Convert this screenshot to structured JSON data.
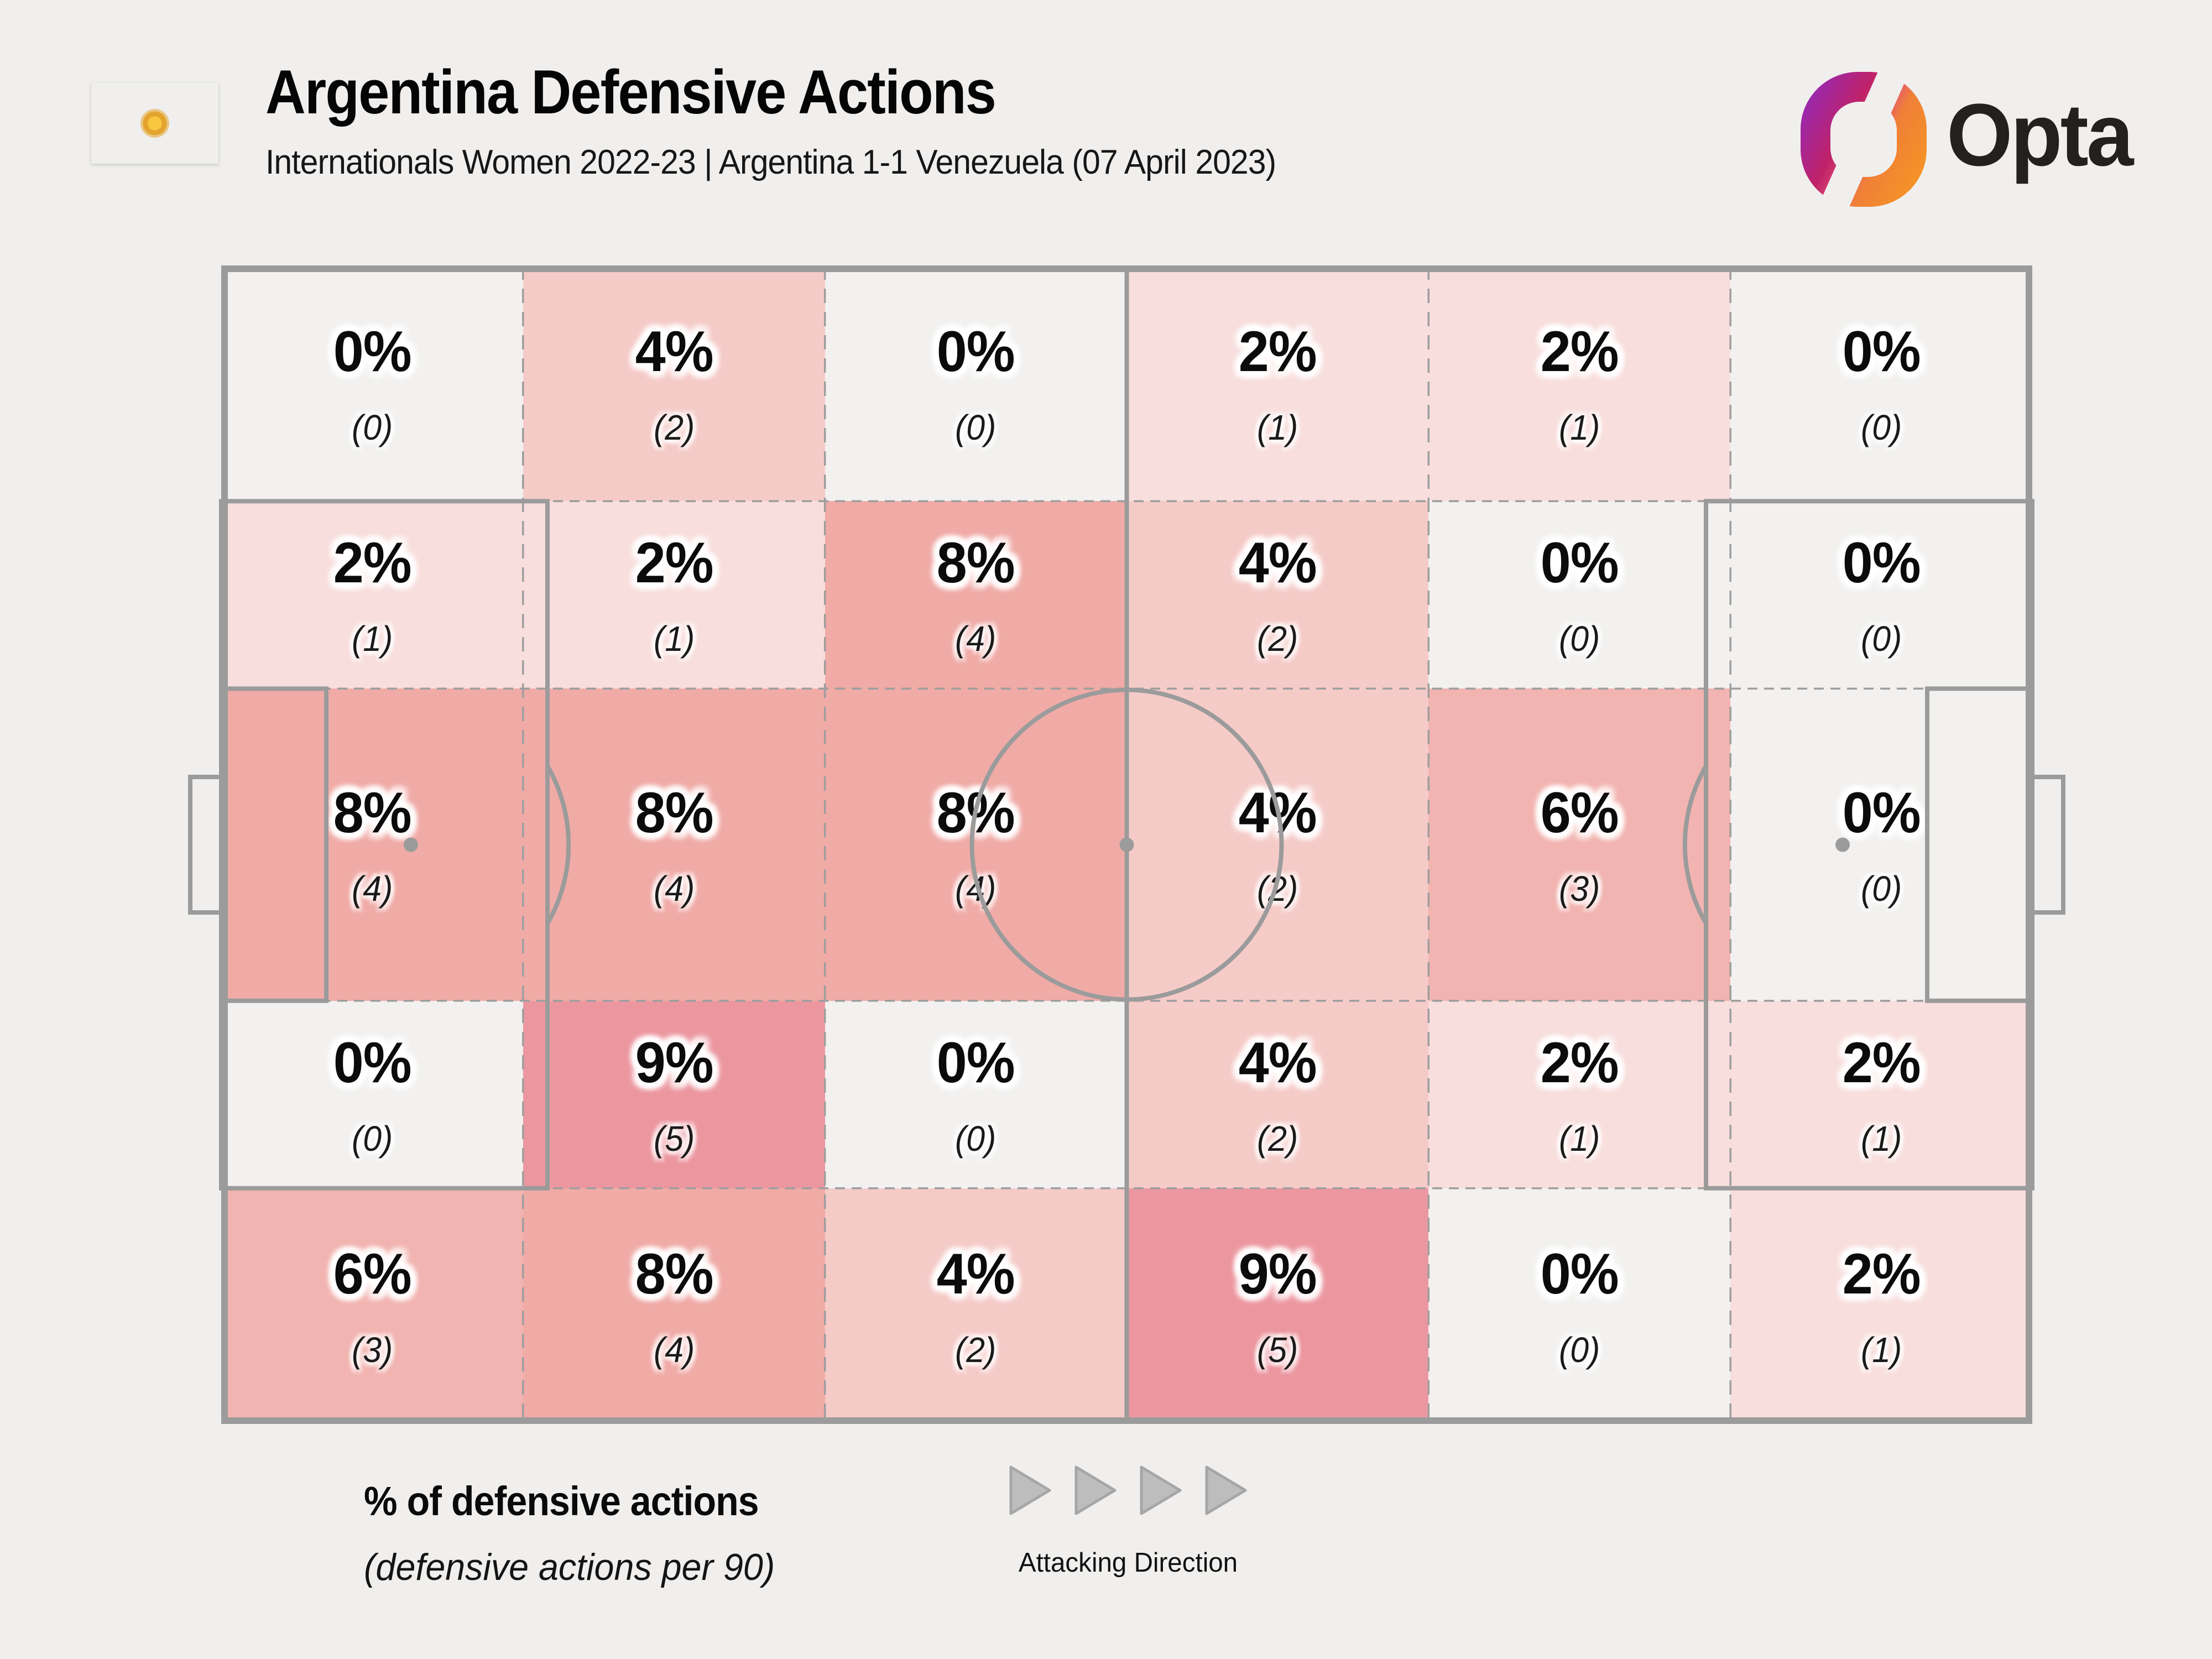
{
  "header": {
    "title": "Argentina Defensive Actions",
    "subtitle": "Internationals Women 2022-23 | Argentina 1-1 Venezuela (07 April 2023)",
    "flag": {
      "country": "Argentina",
      "stripe_color": "#74ACDF",
      "white_color": "#FFFFFF",
      "sun_color": "#E3A42F"
    },
    "brand": {
      "name": "Opta",
      "text_color": "#232120",
      "mark_gradient": [
        "#8A2BC9",
        "#C02268",
        "#F59B1E"
      ]
    }
  },
  "chart_data": {
    "type": "heatmap",
    "title": "Argentina Defensive Actions",
    "subtitle": "Internationals Women 2022-23 | Argentina 1-1 Venezuela (07 April 2023)",
    "description": "Share of defensive actions by pitch zone, 6 columns (own goal at left, attacking right) x 5 horizontal channels",
    "zone_grid": {
      "columns": 6,
      "rows": 5,
      "row_heights_pct": [
        20.35,
        16.18,
        26.94,
        16.18,
        20.35
      ],
      "values_pct": [
        [
          0,
          4,
          0,
          2,
          2,
          0
        ],
        [
          2,
          2,
          8,
          4,
          0,
          0
        ],
        [
          8,
          8,
          8,
          4,
          6,
          0
        ],
        [
          0,
          9,
          0,
          4,
          2,
          2
        ],
        [
          6,
          8,
          4,
          9,
          0,
          2
        ]
      ],
      "counts": [
        [
          0,
          2,
          0,
          1,
          1,
          0
        ],
        [
          1,
          1,
          4,
          2,
          0,
          0
        ],
        [
          4,
          4,
          4,
          2,
          3,
          0
        ],
        [
          0,
          5,
          0,
          2,
          1,
          1
        ],
        [
          3,
          4,
          2,
          5,
          0,
          1
        ]
      ],
      "value_colors": {
        "0": "#F2F1F0",
        "2": "#F8DEDD",
        "4": "#F5CBC8",
        "6": "#F2B4B0",
        "8": "#F0ABA7",
        "9": "#EC97A0"
      }
    },
    "pitch": {
      "line_color": "#9B9B9B",
      "grid_line_color": "#9E9E9E"
    }
  },
  "legend": {
    "primary": "% of defensive actions",
    "secondary": "(defensive actions per 90)"
  },
  "attacking_direction": {
    "label": "Attacking Direction",
    "arrow_count": 4,
    "arrow_fill": "#BDBDBD",
    "arrow_stroke": "#A6A6A6"
  }
}
